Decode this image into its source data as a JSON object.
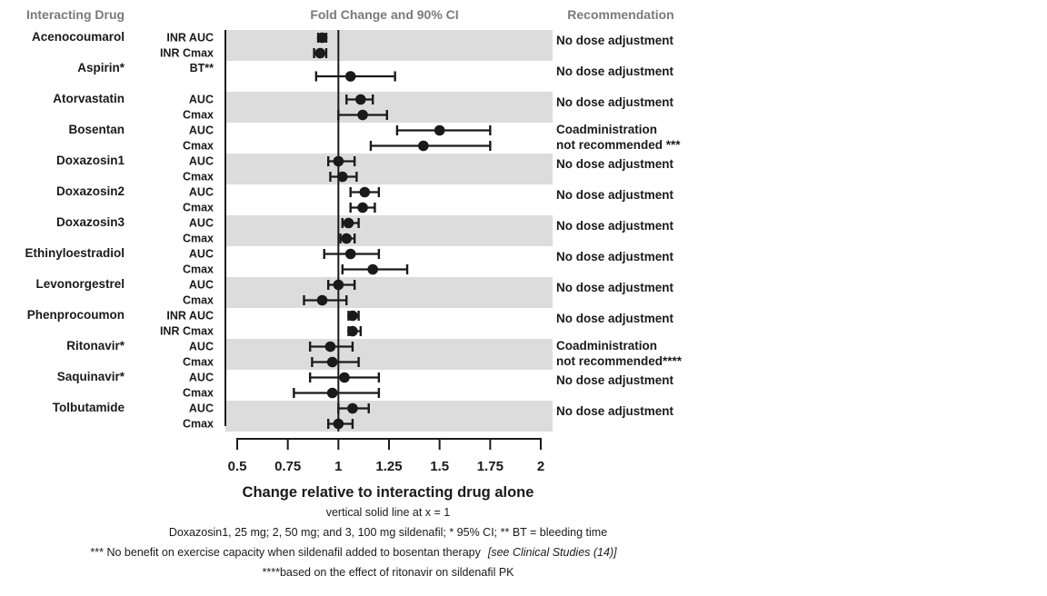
{
  "chart_data": {
    "type": "forest",
    "header_drug": "Interacting Drug",
    "header_plot": "Fold Change and 90% CI",
    "header_rec": "Recommendation",
    "xlabel": "Change relative to interacting drug alone",
    "reference_note": "vertical solid line at x = 1",
    "xlim": [
      0.5,
      2
    ],
    "reference_line": 1,
    "xticks": [
      "0.5",
      "0.75",
      "1",
      "1.25",
      "1.5",
      "1.75",
      "2"
    ],
    "xtick_values": [
      0.5,
      0.75,
      1,
      1.25,
      1.5,
      1.75,
      2
    ],
    "groups": [
      {
        "drug": "Acenocoumarol",
        "shaded": true,
        "recommendation": [
          "No dose adjustment"
        ],
        "params": [
          {
            "label": "INR AUC",
            "est": 0.92,
            "lo": 0.9,
            "hi": 0.94
          },
          {
            "label": "INR Cmax",
            "est": 0.91,
            "lo": 0.88,
            "hi": 0.94
          }
        ]
      },
      {
        "drug": "Aspirin*",
        "shaded": false,
        "recommendation": [
          "No dose adjustment"
        ],
        "params": [
          {
            "label": "BT**",
            "est": 1.06,
            "lo": 0.89,
            "hi": 1.28
          }
        ]
      },
      {
        "drug": "Atorvastatin",
        "shaded": true,
        "recommendation": [
          "No dose adjustment"
        ],
        "params": [
          {
            "label": "AUC",
            "est": 1.11,
            "lo": 1.04,
            "hi": 1.17
          },
          {
            "label": "Cmax",
            "est": 1.12,
            "lo": 1.0,
            "hi": 1.24
          }
        ]
      },
      {
        "drug": "Bosentan",
        "shaded": false,
        "recommendation": [
          "Coadministration",
          "not recommended ***"
        ],
        "params": [
          {
            "label": "AUC",
            "est": 1.5,
            "lo": 1.29,
            "hi": 1.75
          },
          {
            "label": "Cmax",
            "est": 1.42,
            "lo": 1.16,
            "hi": 1.75
          }
        ]
      },
      {
        "drug": "Doxazosin1",
        "shaded": true,
        "recommendation": [
          "No dose adjustment"
        ],
        "params": [
          {
            "label": "AUC",
            "est": 1.0,
            "lo": 0.95,
            "hi": 1.08
          },
          {
            "label": "Cmax",
            "est": 1.02,
            "lo": 0.96,
            "hi": 1.09
          }
        ]
      },
      {
        "drug": "Doxazosin2",
        "shaded": false,
        "recommendation": [
          "No dose adjustment"
        ],
        "params": [
          {
            "label": "AUC",
            "est": 1.13,
            "lo": 1.06,
            "hi": 1.2
          },
          {
            "label": "Cmax",
            "est": 1.12,
            "lo": 1.06,
            "hi": 1.18
          }
        ]
      },
      {
        "drug": "Doxazosin3",
        "shaded": true,
        "recommendation": [
          "No dose adjustment"
        ],
        "params": [
          {
            "label": "AUC",
            "est": 1.05,
            "lo": 1.02,
            "hi": 1.1
          },
          {
            "label": "Cmax",
            "est": 1.04,
            "lo": 1.01,
            "hi": 1.08
          }
        ]
      },
      {
        "drug": "Ethinyloestradiol",
        "shaded": false,
        "recommendation": [
          "No dose adjustment"
        ],
        "params": [
          {
            "label": "AUC",
            "est": 1.06,
            "lo": 0.93,
            "hi": 1.2
          },
          {
            "label": "Cmax",
            "est": 1.17,
            "lo": 1.02,
            "hi": 1.34
          }
        ]
      },
      {
        "drug": "Levonorgestrel",
        "shaded": true,
        "recommendation": [
          "No dose adjustment"
        ],
        "params": [
          {
            "label": "AUC",
            "est": 1.0,
            "lo": 0.95,
            "hi": 1.08
          },
          {
            "label": "Cmax",
            "est": 0.92,
            "lo": 0.83,
            "hi": 1.04
          }
        ]
      },
      {
        "drug": "Phenprocoumon",
        "shaded": false,
        "recommendation": [
          "No dose adjustment"
        ],
        "params": [
          {
            "label": "INR AUC",
            "est": 1.07,
            "lo": 1.05,
            "hi": 1.1
          },
          {
            "label": "INR Cmax",
            "est": 1.07,
            "lo": 1.05,
            "hi": 1.11
          }
        ]
      },
      {
        "drug": "Ritonavir*",
        "shaded": true,
        "recommendation": [
          "Coadministration",
          "not recommended****"
        ],
        "params": [
          {
            "label": "AUC",
            "est": 0.96,
            "lo": 0.86,
            "hi": 1.07
          },
          {
            "label": "Cmax",
            "est": 0.97,
            "lo": 0.87,
            "hi": 1.1
          }
        ]
      },
      {
        "drug": "Saquinavir*",
        "shaded": false,
        "recommendation": [
          "No dose adjustment"
        ],
        "params": [
          {
            "label": "AUC",
            "est": 1.03,
            "lo": 0.86,
            "hi": 1.2
          },
          {
            "label": "Cmax",
            "est": 0.97,
            "lo": 0.78,
            "hi": 1.2
          }
        ]
      },
      {
        "drug": "Tolbutamide",
        "shaded": true,
        "recommendation": [
          "No dose adjustment"
        ],
        "params": [
          {
            "label": "AUC",
            "est": 1.07,
            "lo": 1.0,
            "hi": 1.15
          },
          {
            "label": "Cmax",
            "est": 1.0,
            "lo": 0.95,
            "hi": 1.07
          }
        ]
      }
    ],
    "footnotes": [
      "Doxazosin1, 25 mg; 2, 50 mg; and 3, 100 mg sildenafil; * 95% CI; ** BT = bleeding time",
      "*** No benefit on exercise capacity when sildenafil added to bosentan therapy",
      "****based on the effect of ritonavir on sildenafil PK"
    ],
    "footnote_ref": "[see Clinical Studies (14)]"
  }
}
